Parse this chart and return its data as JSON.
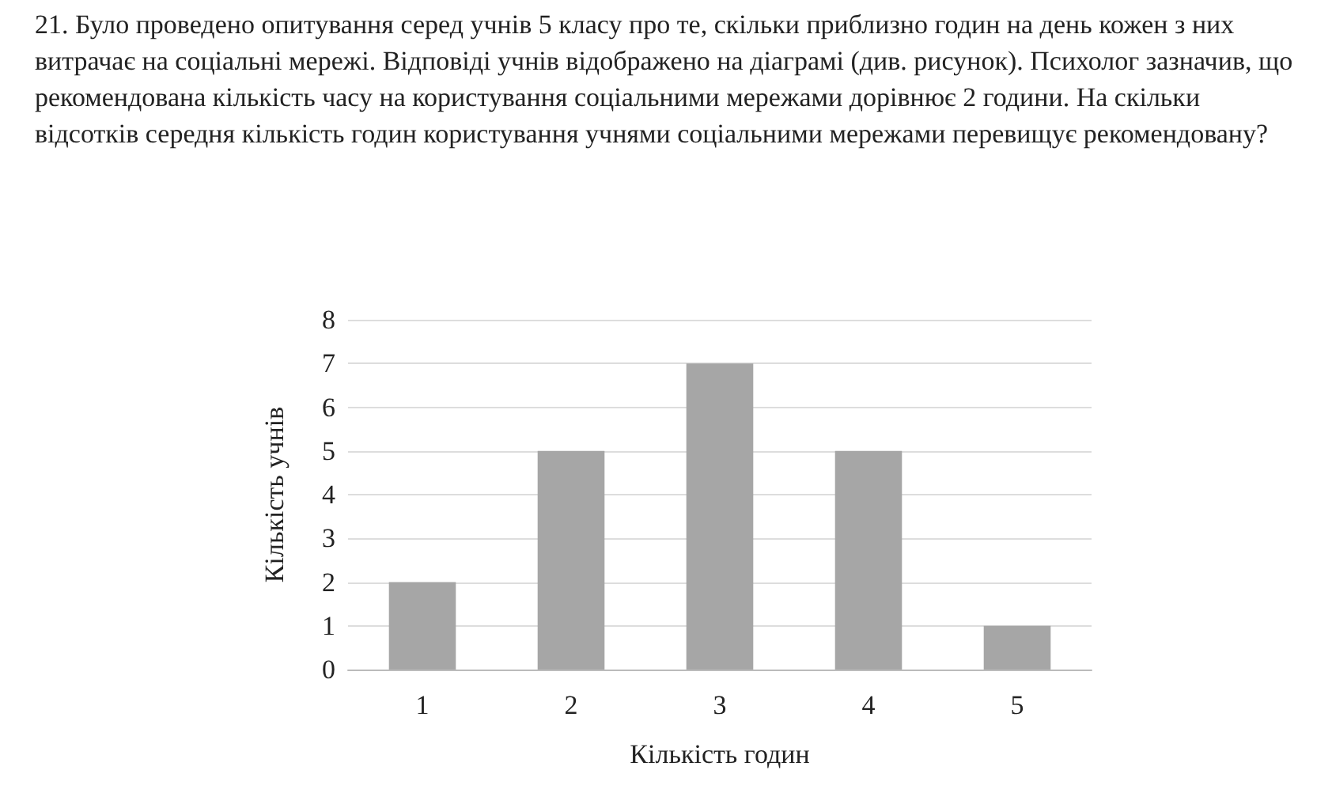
{
  "chart_data": {
    "type": "bar",
    "title": "21. Було проведено опитування серед учнів 5 класу про те, скільки приблизно годин на день кожен з них витрачає на соціальні мережі. Відповіді учнів відображено на діаграмі (див. рисунок). Психолог зазначив, що рекомендована кількість часу на користування соціальними мережами дорівнює 2 години. На скільки відсотків середня кількість годин користування учнями соціальними мережами перевищує рекомендовану?",
    "xlabel": "Кількість годин",
    "ylabel": "Кількість учнів",
    "categories": [
      "1",
      "2",
      "3",
      "4",
      "5"
    ],
    "values": [
      2,
      5,
      7,
      5,
      1
    ],
    "color": "#a6a6a6",
    "ylim": [
      0,
      8
    ],
    "yticks": [
      0,
      1,
      2,
      3,
      4,
      5,
      6,
      7,
      8
    ],
    "grid": "y"
  }
}
